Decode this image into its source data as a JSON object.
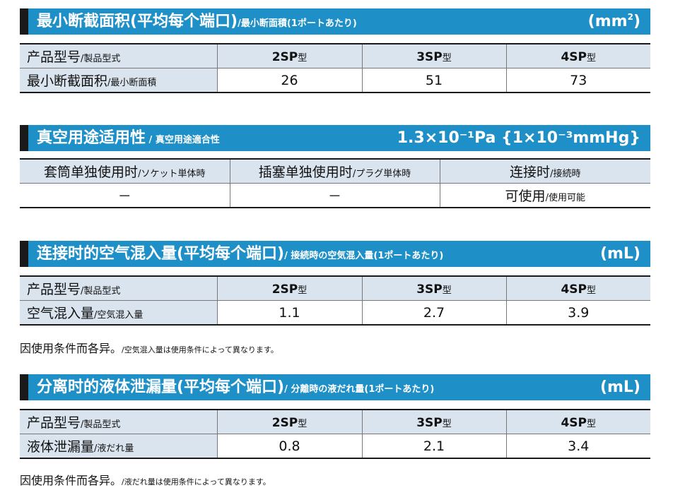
{
  "s1": {
    "title": "最小断截面积(平均每个端口)",
    "title_sub": "/最小断面積(1ポートあたり)",
    "unit_base": "(mm",
    "unit_sup": "2",
    "unit_tail": ")",
    "header_label": "产品型号",
    "header_label_sub": "/製品型式",
    "models": [
      {
        "code": "2SP",
        "suffix": "型"
      },
      {
        "code": "3SP",
        "suffix": "型"
      },
      {
        "code": "4SP",
        "suffix": "型"
      }
    ],
    "row_label": "最小断截面积",
    "row_label_sub": "/最小断面積",
    "values": [
      "26",
      "51",
      "73"
    ]
  },
  "s2": {
    "title": "真空用途适用性",
    "title_sub": " / 真空用途適合性",
    "unit": "1.3×10⁻¹Pa {1×10⁻³mmHg}",
    "headers": [
      {
        "main": "套筒单独使用时",
        "sub": "/ソケット単体時"
      },
      {
        "main": "插塞单独使用时",
        "sub": "/プラグ単体時"
      },
      {
        "main": "连接时",
        "sub": "/接続時"
      }
    ],
    "values": [
      {
        "main": "－",
        "sub": ""
      },
      {
        "main": "－",
        "sub": ""
      },
      {
        "main": "可使用",
        "sub": "/使用可能"
      }
    ]
  },
  "s3": {
    "title": "连接时的空气混入量(平均每个端口)",
    "title_sub": "/ 接続時の空気混入量(1ポートあたり)",
    "unit": "(mL)",
    "header_label": "产品型号",
    "header_label_sub": "/製品型式",
    "models": [
      {
        "code": "2SP",
        "suffix": "型"
      },
      {
        "code": "3SP",
        "suffix": "型"
      },
      {
        "code": "4SP",
        "suffix": "型"
      }
    ],
    "row_label": "空气混入量",
    "row_label_sub": "/空気混入量",
    "values": [
      "1.1",
      "2.7",
      "3.9"
    ],
    "note": "因使用条件而各异。",
    "note_sub": "/空気混入量は使用条件によって異なります。"
  },
  "s4": {
    "title": "分离时的液体泄漏量(平均每个端口)",
    "title_sub": "/ 分離時の液だれ量(1ポートあたり)",
    "unit": "(mL)",
    "header_label": "产品型号",
    "header_label_sub": "/製品型式",
    "models": [
      {
        "code": "2SP",
        "suffix": "型"
      },
      {
        "code": "3SP",
        "suffix": "型"
      },
      {
        "code": "4SP",
        "suffix": "型"
      }
    ],
    "row_label": "液体泄漏量",
    "row_label_sub": "/液だれ量",
    "values": [
      "0.8",
      "2.1",
      "3.4"
    ],
    "note": "因使用条件而各异。",
    "note_sub": "/液だれ量は使用条件によって異なります。"
  }
}
